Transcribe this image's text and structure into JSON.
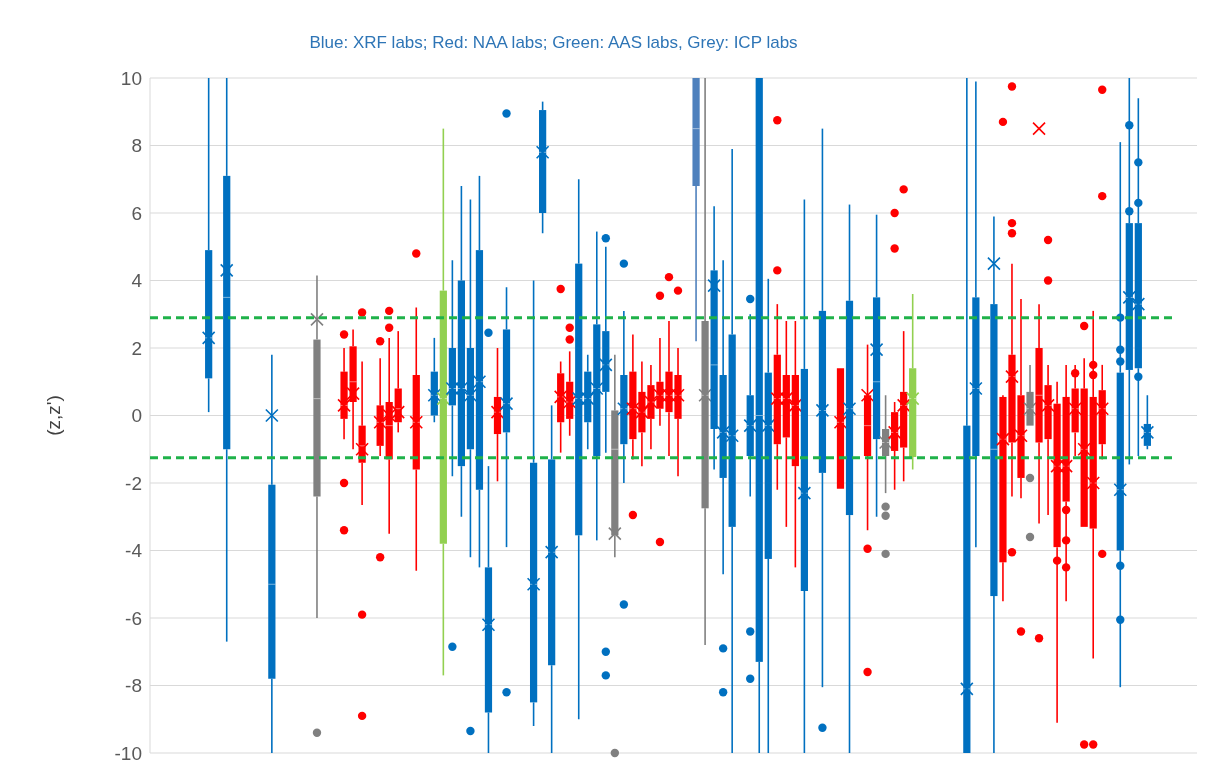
{
  "chart_data": {
    "type": "box",
    "title": "Blue: XRF labs; Red: NAA labs; Green: AAS labs, Grey: ICP labs",
    "ylabel": "(z,z')",
    "ylim": [
      -10,
      10
    ],
    "yticks": [
      -10,
      -8,
      -6,
      -4,
      -2,
      0,
      2,
      4,
      6,
      8,
      10
    ],
    "grid": "y",
    "ref_lines": [
      {
        "axis": "y",
        "value": 2.9,
        "color": "#1fb24a",
        "line_style": "dashed"
      },
      {
        "axis": "y",
        "value": -1.25,
        "color": "#1fb24a",
        "line_style": "dashed"
      }
    ],
    "categories": [
      null,
      null,
      null,
      null,
      null,
      null,
      null,
      null,
      null,
      null,
      null,
      null,
      null,
      null,
      null,
      null,
      null,
      null,
      null,
      null,
      null,
      null,
      null,
      null,
      null,
      null,
      null,
      null,
      null,
      null,
      null,
      null,
      null,
      null,
      null,
      null,
      null,
      null,
      null,
      null,
      null,
      null,
      null,
      null,
      null,
      null,
      null,
      null,
      null,
      null,
      null,
      null,
      null,
      null,
      null,
      null,
      null,
      null,
      null,
      null,
      null,
      null,
      null,
      null,
      null,
      null,
      null,
      null,
      null,
      null,
      null,
      null,
      null,
      null,
      null,
      null,
      null,
      null,
      null,
      null,
      null,
      null,
      null,
      null,
      null,
      null,
      null,
      null,
      null,
      null,
      null,
      null,
      null,
      null,
      null,
      null,
      null,
      null,
      null,
      null,
      null,
      null,
      null,
      null,
      null,
      null,
      null,
      null,
      null,
      null,
      null,
      null,
      null,
      null,
      null,
      null
    ],
    "colors": [
      null,
      null,
      null,
      null,
      null,
      null,
      "#0070c0",
      null,
      "#0070c0",
      null,
      null,
      null,
      null,
      "#0070c0",
      null,
      null,
      null,
      null,
      "#808080",
      null,
      null,
      "#ff0000",
      "#ff0000",
      "#ff0000",
      null,
      "#ff0000",
      "#ff0000",
      "#ff0000",
      null,
      "#ff0000",
      null,
      "#0070c0",
      "#92d050",
      "#0070c0",
      "#0070c0",
      "#0070c0",
      "#0070c0",
      "#0070c0",
      "#ff0000",
      "#0070c0",
      null,
      null,
      "#0070c0",
      "#0070c0",
      "#0070c0",
      "#ff0000",
      "#ff0000",
      "#0070c0",
      "#0070c0",
      "#0070c0",
      "#0070c0",
      "#808080",
      "#0070c0",
      "#ff0000",
      "#ff0000",
      "#ff0000",
      "#ff0000",
      "#ff0000",
      "#ff0000",
      null,
      "#4f81bd",
      "#808080",
      "#0070c0",
      "#0070c0",
      "#0070c0",
      null,
      "#0070c0",
      "#0070c0",
      "#0070c0",
      "#ff0000",
      "#ff0000",
      "#ff0000",
      "#0070c0",
      null,
      "#0070c0",
      null,
      "#ff0000",
      "#0070c0",
      null,
      "#ff0000",
      "#0070c0",
      "#808080",
      "#ff0000",
      "#ff0000",
      "#92d050",
      null,
      null,
      null,
      null,
      null,
      "#0070c0",
      "#0070c0",
      null,
      "#0070c0",
      "#ff0000",
      "#ff0000",
      "#ff0000",
      "#808080",
      "#ff0000",
      "#ff0000",
      "#ff0000",
      "#ff0000",
      "#ff0000",
      "#ff0000",
      "#ff0000",
      "#ff0000",
      null,
      "#0070c0",
      "#0070c0",
      "#0070c0",
      "#0070c0",
      null,
      null,
      null,
      null,
      null
    ],
    "boxes": [
      null,
      null,
      null,
      null,
      null,
      null,
      {
        "low": 0.1,
        "q1": 1.1,
        "median": 2.3,
        "q3": 4.9,
        "high": 10,
        "mean": 2.3
      },
      null,
      {
        "low": -6.7,
        "q1": -1,
        "median": 3.5,
        "q3": 7.1,
        "high": 10,
        "mean": 4.3
      },
      null,
      null,
      null,
      null,
      {
        "low": -10,
        "q1": -7.8,
        "median": -5,
        "q3": -2.05,
        "high": 1.8,
        "mean": 0
      },
      null,
      null,
      null,
      null,
      {
        "low": -6,
        "q1": -2.4,
        "median": 0.5,
        "q3": 2.25,
        "high": 4.15,
        "mean": 2.85,
        "outliers": [
          -9.4
        ]
      },
      null,
      null,
      {
        "low": -0.7,
        "q1": -0.1,
        "median": 0.3,
        "q3": 1.3,
        "high": 2,
        "mean": 0.3,
        "outliers": [
          2.4,
          -2,
          -3.4
        ]
      },
      {
        "low": -1,
        "q1": 0.4,
        "median": 1,
        "q3": 2.05,
        "high": 2.55,
        "mean": 0.65
      },
      {
        "low": -2.65,
        "q1": -1.4,
        "median": -0.9,
        "q3": -0.3,
        "high": 1.6,
        "mean": -1,
        "outliers": [
          3.05,
          -5.9,
          -8.9
        ]
      },
      null,
      {
        "low": -1.2,
        "q1": -0.9,
        "median": -0.2,
        "q3": 0.3,
        "high": 1.7,
        "mean": -0.2,
        "outliers": [
          2.2,
          -4.2
        ]
      },
      {
        "low": -3.5,
        "q1": -1.3,
        "median": -0.3,
        "q3": 0.4,
        "high": 2.3,
        "mean": 0,
        "outliers": [
          3.1,
          2.6
        ]
      },
      {
        "low": -0.5,
        "q1": -0.2,
        "median": 0.2,
        "q3": 0.8,
        "high": 2.5,
        "mean": 0.1
      },
      null,
      {
        "low": -4.6,
        "q1": -1.6,
        "median": -0.2,
        "q3": 1.2,
        "high": 3.2,
        "mean": -0.2,
        "outliers": [
          4.8
        ]
      },
      null,
      {
        "low": -0.2,
        "q1": 0,
        "median": 0.6,
        "q3": 1.3,
        "high": 2.3,
        "mean": 0.6
      },
      {
        "low": -7.7,
        "q1": -3.8,
        "median": 0.5,
        "q3": 3.7,
        "high": 8.5,
        "mean": 0.5
      },
      {
        "low": -1.8,
        "q1": 0.3,
        "median": 0.8,
        "q3": 2,
        "high": 4.6,
        "mean": 0.8,
        "outliers": [
          -6.85
        ]
      },
      {
        "low": -3,
        "q1": -1.5,
        "median": 0.8,
        "q3": 4,
        "high": 6.8,
        "mean": 0.8
      },
      {
        "low": -4.2,
        "q1": -1,
        "median": 0.6,
        "q3": 2,
        "high": 6.4,
        "mean": 0.6,
        "outliers": [
          -9.35
        ]
      },
      {
        "low": -4.5,
        "q1": -2.2,
        "median": 1,
        "q3": 4.9,
        "high": 7.1,
        "mean": 1
      },
      {
        "low": -10,
        "q1": -8.8,
        "median": -6.2,
        "q3": -4.5,
        "high": -1.5,
        "mean": -6.2,
        "outliers": [
          2.45
        ]
      },
      {
        "low": -1.95,
        "q1": -0.55,
        "median": 0.1,
        "q3": 0.55,
        "high": 2,
        "mean": 0.1
      },
      {
        "low": -3.9,
        "q1": -0.5,
        "median": 0.35,
        "q3": 2.55,
        "high": 3.8,
        "mean": 0.35,
        "outliers": [
          8.95,
          -8.2
        ]
      },
      null,
      null,
      {
        "low": -9.2,
        "q1": -8.5,
        "median": -5,
        "q3": -1.4,
        "high": 4,
        "mean": -5
      },
      {
        "low": 5.4,
        "q1": 6,
        "median": 7.8,
        "q3": 9.05,
        "high": 9.3,
        "mean": 7.8
      },
      {
        "low": -10,
        "q1": -7.4,
        "median": -4.05,
        "q3": -1.3,
        "high": 0.3,
        "mean": -4.05
      },
      {
        "low": -1.1,
        "q1": -0.2,
        "median": 0.55,
        "q3": 1.25,
        "high": 1.6,
        "mean": 0.55,
        "outliers": [
          3.75
        ]
      },
      {
        "low": -0.6,
        "q1": -0.1,
        "median": 0.4,
        "q3": 1,
        "high": 1.9,
        "mean": 0.4,
        "outliers": [
          2.6,
          2.25
        ]
      },
      {
        "low": -9,
        "q1": -3.55,
        "median": 0.5,
        "q3": 4.5,
        "high": 7,
        "mean": 0.5
      },
      {
        "low": -1,
        "q1": -0.2,
        "median": 0.5,
        "q3": 1.3,
        "high": 1.8,
        "mean": 0.5
      },
      {
        "low": -3.7,
        "q1": -1.2,
        "median": 0.8,
        "q3": 2.7,
        "high": 5.45,
        "mean": 0.8
      },
      {
        "low": -1.1,
        "q1": 0.7,
        "median": 1.5,
        "q3": 2.5,
        "high": 5,
        "mean": 1.5,
        "outliers": [
          5.25,
          -7,
          -7.7
        ]
      },
      {
        "low": -4.2,
        "q1": -3.55,
        "median": -1,
        "q3": 0.15,
        "high": 1.8,
        "mean": -3.5,
        "outliers": [
          -10
        ]
      },
      {
        "low": -2,
        "q1": -0.85,
        "median": 0.2,
        "q3": 1.2,
        "high": 3.1,
        "mean": 0.2,
        "outliers": [
          4.5,
          -5.6
        ]
      },
      {
        "low": -1.3,
        "q1": -0.7,
        "median": 0.2,
        "q3": 1.3,
        "high": 2.4,
        "mean": 0.2,
        "outliers": [
          -2.95
        ]
      },
      {
        "low": -1.5,
        "q1": -0.5,
        "median": 0.1,
        "q3": 0.7,
        "high": 1.6,
        "mean": 0.1
      },
      {
        "low": -1,
        "q1": -0.1,
        "median": 0.4,
        "q3": 0.9,
        "high": 1.5,
        "mean": 0.4
      },
      {
        "low": -0.3,
        "q1": 0.2,
        "median": 0.6,
        "q3": 1,
        "high": 2.3,
        "mean": 0.6,
        "outliers": [
          3.55,
          -3.75
        ]
      },
      {
        "low": -1.2,
        "q1": 0.1,
        "median": 0.6,
        "q3": 1.3,
        "high": 2.8,
        "mean": 0.6,
        "outliers": [
          4.1
        ]
      },
      {
        "low": -1.8,
        "q1": -0.1,
        "median": 0.6,
        "q3": 1.2,
        "high": 2,
        "mean": 0.6,
        "outliers": [
          3.7
        ]
      },
      null,
      {
        "low": 2.2,
        "q1": 6.8,
        "median": 8.5,
        "q3": 10,
        "high": 10
      },
      {
        "low": -6.8,
        "q1": -2.75,
        "median": 0.6,
        "q3": 2.8,
        "high": 10,
        "mean": 0.6
      },
      {
        "low": -1.6,
        "q1": -0.4,
        "median": 1.5,
        "q3": 4.3,
        "high": 6.2,
        "mean": 3.85
      },
      {
        "low": -4.7,
        "q1": -1.85,
        "median": -0.5,
        "q3": 1.2,
        "high": 4.6,
        "mean": -0.5,
        "outliers": [
          -6.9,
          -8.2
        ]
      },
      {
        "low": -10,
        "q1": -3.3,
        "median": -0.6,
        "q3": 2.4,
        "high": 7.9,
        "mean": -0.6
      },
      null,
      {
        "low": -2.4,
        "q1": -1.2,
        "median": -0.3,
        "q3": 0.6,
        "high": 3,
        "mean": -0.3,
        "outliers": [
          3.45,
          -6.4,
          -7.8
        ]
      },
      {
        "low": -10,
        "q1": -7.3,
        "median": 0,
        "q3": 10,
        "high": 10
      },
      {
        "low": -10,
        "q1": -4.25,
        "median": -0.3,
        "q3": 1.27,
        "high": 4.05,
        "mean": -0.3
      },
      {
        "low": -2.2,
        "q1": -0.85,
        "median": 0.5,
        "q3": 1.8,
        "high": 3.3,
        "mean": 0.5,
        "outliers": [
          8.75,
          4.3
        ]
      },
      {
        "low": -3.3,
        "q1": -0.65,
        "median": 0.5,
        "q3": 1.2,
        "high": 2.8,
        "mean": 0.5
      },
      {
        "low": -4.5,
        "q1": -1.5,
        "median": 0.3,
        "q3": 1.2,
        "high": 2.8,
        "mean": 0.3
      },
      {
        "low": -10,
        "q1": -5.2,
        "median": -2.3,
        "q3": 1.38,
        "high": 6.4,
        "mean": -2.3
      },
      null,
      {
        "low": -8.05,
        "q1": -1.7,
        "median": 0.15,
        "q3": 3.1,
        "high": 8.5,
        "mean": 0.15,
        "outliers": [
          -9.25
        ]
      },
      null,
      {
        "low": -2.17,
        "q1": -2.17,
        "median": -0.2,
        "q3": 1.4,
        "high": 1.4,
        "mean": -0.2
      },
      {
        "low": -10,
        "q1": -2.95,
        "median": 0.2,
        "q3": 3.4,
        "high": 6.25,
        "mean": 0.2
      },
      null,
      {
        "low": -3.4,
        "q1": -1.2,
        "median": -0.3,
        "q3": 0.6,
        "high": 2.1,
        "mean": 0.6,
        "outliers": [
          -3.95,
          -7.6
        ]
      },
      {
        "low": -3,
        "q1": -0.7,
        "median": 1,
        "q3": 3.5,
        "high": 5.95,
        "mean": 1.95
      },
      {
        "low": -2.3,
        "q1": -1.2,
        "median": -0.8,
        "q3": -0.4,
        "high": 0.6,
        "mean": -0.8,
        "outliers": [
          -2.7,
          -2.97,
          -4.1
        ]
      },
      {
        "low": -2.2,
        "q1": -1.05,
        "median": -0.5,
        "q3": 0.1,
        "high": 0.4,
        "mean": -0.5,
        "outliers": [
          6,
          4.95
        ]
      },
      {
        "low": -1.95,
        "q1": -0.95,
        "median": 0.3,
        "q3": 0.7,
        "high": 2.5,
        "mean": 0.3,
        "outliers": [
          6.7
        ]
      },
      {
        "low": -1.6,
        "q1": -1.23,
        "median": 0.5,
        "q3": 1.4,
        "high": 3.6,
        "mean": 0.5
      },
      null,
      null,
      null,
      null,
      null,
      {
        "low": -10,
        "q1": -10,
        "median": -8.1,
        "q3": -0.3,
        "high": 10,
        "mean": -8.1
      },
      {
        "low": -3.9,
        "q1": -1.2,
        "median": 0.8,
        "q3": 3.5,
        "high": 9.9,
        "mean": 0.8
      },
      null,
      {
        "low": -10,
        "q1": -5.35,
        "median": -1,
        "q3": 3.3,
        "high": 5.9,
        "mean": 4.5
      },
      {
        "low": -5.5,
        "q1": -4.35,
        "median": -0.7,
        "q3": 0.55,
        "high": 0.6,
        "mean": -0.7,
        "outliers": [
          8.7
        ]
      },
      {
        "low": -2.4,
        "q1": -0.8,
        "median": 1.15,
        "q3": 1.8,
        "high": 4.5,
        "mean": 1.15,
        "outliers": [
          9.75,
          5.7,
          5.4,
          -4.05
        ]
      },
      {
        "low": -2.45,
        "q1": -1.85,
        "median": -0.6,
        "q3": 0.6,
        "high": 3.45,
        "mean": -0.6,
        "outliers": [
          -6.4
        ]
      },
      {
        "low": -0.3,
        "q1": -0.3,
        "median": 0.2,
        "q3": 0.7,
        "high": 1.5,
        "mean": 0.2,
        "outliers": [
          -1.85,
          -3.6
        ]
      },
      {
        "low": -3.2,
        "q1": -0.8,
        "median": 0.6,
        "q3": 2,
        "high": 3.3,
        "mean": 8.5,
        "outliers": [
          -6.6
        ]
      },
      {
        "low": -2.95,
        "q1": -0.7,
        "median": 0.3,
        "q3": 0.9,
        "high": 1.5,
        "mean": 0.3,
        "outliers": [
          4,
          5.2
        ]
      },
      {
        "low": -9.1,
        "q1": -3.9,
        "median": -1.5,
        "q3": 0.35,
        "high": 1,
        "mean": -1.5,
        "outliers": [
          -4.3
        ]
      },
      {
        "low": -5.5,
        "q1": -2.55,
        "median": -1.5,
        "q3": 0.55,
        "high": 1.5,
        "mean": -1.5,
        "outliers": [
          -2.8,
          -3.7,
          -4.5
        ]
      },
      {
        "low": -1.2,
        "q1": -0.5,
        "median": 0.2,
        "q3": 0.8,
        "high": 1.5,
        "mean": 0.2,
        "outliers": [
          1.25
        ]
      },
      {
        "low": -3.3,
        "q1": -3.3,
        "median": -1,
        "q3": 0.8,
        "high": 1.7,
        "mean": -1,
        "outliers": [
          2.65,
          -9.75
        ]
      },
      {
        "low": -7.2,
        "q1": -3.35,
        "median": -2,
        "q3": 0.55,
        "high": 3.1,
        "mean": -2,
        "outliers": [
          1.5,
          1.2,
          -9.75
        ]
      },
      {
        "low": -1.3,
        "q1": -0.85,
        "median": 0.2,
        "q3": 0.75,
        "high": 1.5,
        "mean": 0.2,
        "outliers": [
          9.65,
          6.5,
          -4.1
        ]
      },
      null,
      {
        "low": -8.05,
        "q1": -4,
        "median": -2.2,
        "q3": 1.27,
        "high": 8.1,
        "mean": -2.2,
        "outliers": [
          2.9,
          1.95,
          1.6,
          -4.45,
          -6.05
        ]
      },
      {
        "low": -1.45,
        "q1": 1.35,
        "median": 3.5,
        "q3": 5.7,
        "high": 10,
        "mean": 3.5,
        "outliers": [
          8.6,
          6.05
        ]
      },
      {
        "low": -1.2,
        "q1": 1.4,
        "median": 3.3,
        "q3": 5.7,
        "high": 9.4,
        "mean": 3.3,
        "outliers": [
          7.5,
          6.3,
          1.15
        ]
      },
      {
        "low": -1,
        "q1": -0.9,
        "median": -0.5,
        "q3": -0.25,
        "high": 0.6,
        "mean": -0.5
      },
      null,
      null,
      null,
      null,
      null
    ]
  }
}
